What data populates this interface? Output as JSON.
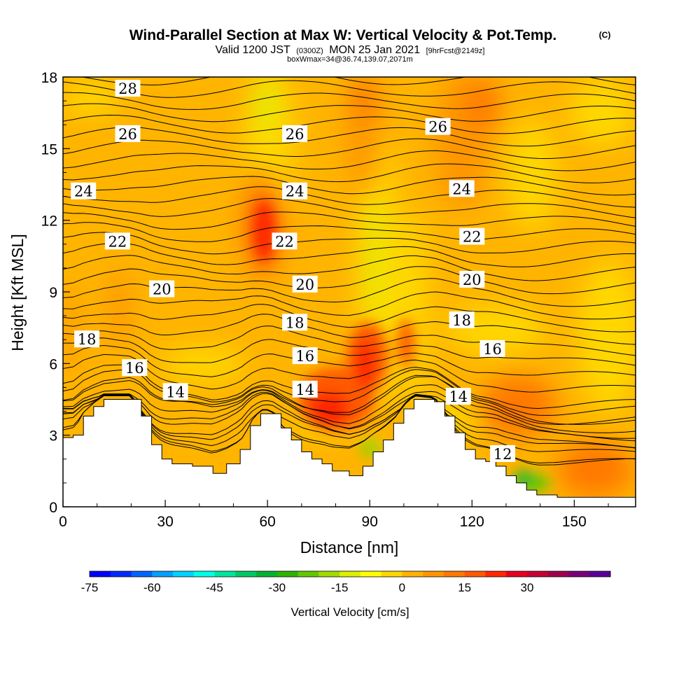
{
  "header": {
    "title": "Wind-Parallel Section at Max W: Vertical Velocity & Pot.Temp.",
    "copyright": "(C)",
    "valid_prefix": "Valid 1200 JST",
    "valid_utc": "(0300Z)",
    "valid_date": "MON 25 Jan 2021",
    "forecast": "[9hrFcst@2149z]",
    "box_info": "boxWmax=34@36.74,139.07,2071m"
  },
  "chart_data": {
    "type": "heatmap",
    "title": "Wind-Parallel Section at Max W: Vertical Velocity & Pot.Temp.",
    "xlabel": "Distance [nm]",
    "ylabel": "Height [Kft MSL]",
    "xlim": [
      0,
      168
    ],
    "ylim": [
      0,
      18
    ],
    "x_ticks": [
      0,
      30,
      60,
      90,
      120,
      150
    ],
    "y_ticks": [
      0,
      3,
      6,
      9,
      12,
      15,
      18
    ],
    "grid": false,
    "terrain": [
      [
        0,
        2.9
      ],
      [
        3,
        3.0
      ],
      [
        6,
        3.8
      ],
      [
        9,
        4.2
      ],
      [
        12,
        4.5
      ],
      [
        20,
        4.5
      ],
      [
        23,
        3.8
      ],
      [
        26,
        2.6
      ],
      [
        29,
        2.0
      ],
      [
        32,
        1.8
      ],
      [
        38,
        1.7
      ],
      [
        44,
        1.4
      ],
      [
        48,
        1.8
      ],
      [
        52,
        2.4
      ],
      [
        55,
        3.4
      ],
      [
        58,
        3.9
      ],
      [
        61,
        3.9
      ],
      [
        64,
        3.3
      ],
      [
        67,
        2.8
      ],
      [
        70,
        2.3
      ],
      [
        73,
        2.0
      ],
      [
        76,
        1.8
      ],
      [
        79,
        1.5
      ],
      [
        84,
        1.3
      ],
      [
        88,
        1.7
      ],
      [
        91,
        2.3
      ],
      [
        94,
        2.8
      ],
      [
        97,
        3.5
      ],
      [
        100,
        4.1
      ],
      [
        103,
        4.5
      ],
      [
        109,
        4.4
      ],
      [
        112,
        3.8
      ],
      [
        115,
        3.1
      ],
      [
        118,
        2.4
      ],
      [
        121,
        2.0
      ],
      [
        124,
        1.9
      ],
      [
        127,
        1.7
      ],
      [
        130,
        1.3
      ],
      [
        133,
        1.0
      ],
      [
        136,
        0.7
      ],
      [
        139,
        0.5
      ],
      [
        145,
        0.4
      ],
      [
        168,
        0.4
      ]
    ],
    "theta_contour_labels": [
      {
        "value": "28",
        "x": 19,
        "y": 17.5
      },
      {
        "value": "26",
        "x": 19,
        "y": 15.6
      },
      {
        "value": "26",
        "x": 68,
        "y": 15.6
      },
      {
        "value": "26",
        "x": 110,
        "y": 15.9
      },
      {
        "value": "24",
        "x": 6,
        "y": 13.2
      },
      {
        "value": "24",
        "x": 68,
        "y": 13.2
      },
      {
        "value": "24",
        "x": 117,
        "y": 13.3
      },
      {
        "value": "22",
        "x": 16,
        "y": 11.1
      },
      {
        "value": "22",
        "x": 65,
        "y": 11.1
      },
      {
        "value": "22",
        "x": 120,
        "y": 11.3
      },
      {
        "value": "20",
        "x": 29,
        "y": 9.1
      },
      {
        "value": "20",
        "x": 71,
        "y": 9.3
      },
      {
        "value": "20",
        "x": 120,
        "y": 9.5
      },
      {
        "value": "18",
        "x": 7,
        "y": 7.0
      },
      {
        "value": "18",
        "x": 68,
        "y": 7.7
      },
      {
        "value": "18",
        "x": 117,
        "y": 7.8
      },
      {
        "value": "16",
        "x": 21,
        "y": 5.8
      },
      {
        "value": "16",
        "x": 71,
        "y": 6.3
      },
      {
        "value": "16",
        "x": 126,
        "y": 6.6
      },
      {
        "value": "14",
        "x": 33,
        "y": 4.8
      },
      {
        "value": "14",
        "x": 71,
        "y": 4.9
      },
      {
        "value": "14",
        "x": 116,
        "y": 4.6
      },
      {
        "value": "12",
        "x": 129,
        "y": 2.2
      }
    ],
    "vertical_velocity_cores": [
      {
        "x": 78,
        "y": 4.0,
        "value": 30,
        "sign": "up"
      },
      {
        "x": 89,
        "y": 5.8,
        "value": 25,
        "sign": "up"
      },
      {
        "x": 59,
        "y": 11.5,
        "value": 20,
        "sign": "up"
      },
      {
        "x": 134,
        "y": 1.5,
        "value": -30,
        "sign": "down"
      },
      {
        "x": 89,
        "y": 2.5,
        "value": -25,
        "sign": "down"
      }
    ]
  },
  "colorbar": {
    "label": "Vertical Velocity [cm/s]",
    "tick_labels": [
      "-75",
      "-60",
      "-45",
      "-30",
      "-15",
      "0",
      "15",
      "30"
    ],
    "colors": [
      "#0000ff",
      "#0028ff",
      "#0064ff",
      "#00a0ff",
      "#00d2ff",
      "#00ffe6",
      "#00e6a0",
      "#00c864",
      "#00b432",
      "#2db400",
      "#64c800",
      "#a0dc00",
      "#dcf000",
      "#ffff00",
      "#ffd700",
      "#ffb400",
      "#ff9600",
      "#ff7800",
      "#ff5a00",
      "#ff2800",
      "#e6001e",
      "#c80032",
      "#a00050",
      "#780078",
      "#5a0096"
    ]
  }
}
